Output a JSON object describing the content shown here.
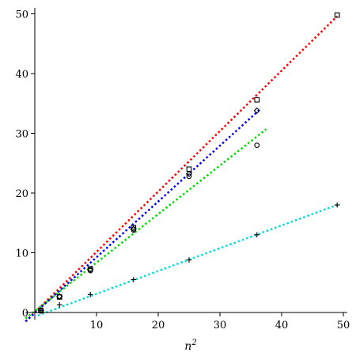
{
  "chart_data": {
    "type": "scatter",
    "xlabel": "n",
    "xlabel_superscript": "2",
    "ylabel": "",
    "xlim": [
      -1.5,
      51
    ],
    "ylim": [
      -1.2,
      51
    ],
    "xticks": [
      10,
      20,
      30,
      40,
      50
    ],
    "yticks": [
      0,
      10,
      20,
      30,
      40,
      50
    ],
    "grid": false,
    "series": [
      {
        "marker": "square",
        "line_color": "#ff0000",
        "fit": [
          [
            -1.5,
            -1.5
          ],
          [
            49,
            49.6
          ]
        ],
        "points": [
          [
            1,
            0.3
          ],
          [
            4,
            2.6
          ],
          [
            9,
            7.3
          ],
          [
            16,
            14.2
          ],
          [
            25,
            24.0
          ],
          [
            36,
            35.6
          ],
          [
            49,
            49.8
          ]
        ]
      },
      {
        "marker": "diamond",
        "line_color": "#0000ff",
        "fit": [
          [
            -1.5,
            -1.5
          ],
          [
            36.5,
            34.0
          ]
        ],
        "points": [
          [
            1,
            0.3
          ],
          [
            4,
            2.7
          ],
          [
            9,
            7.2
          ],
          [
            16,
            14.0
          ],
          [
            25,
            23.2
          ],
          [
            36,
            33.8
          ]
        ]
      },
      {
        "marker": "circle",
        "line_color": "#00dd00",
        "fit": [
          [
            -1.5,
            -1.0
          ],
          [
            37.5,
            30.7
          ]
        ],
        "points": [
          [
            1,
            0.4
          ],
          [
            4,
            2.6
          ],
          [
            9,
            7.0
          ],
          [
            16,
            13.8
          ],
          [
            25,
            22.8
          ],
          [
            36,
            28.0
          ]
        ]
      },
      {
        "marker": "plus",
        "line_color": "#00dddd",
        "fit": [
          [
            0.5,
            -0.5
          ],
          [
            49.5,
            18.2
          ]
        ],
        "points": [
          [
            1,
            0.3
          ],
          [
            4,
            1.3
          ],
          [
            9,
            3.0
          ],
          [
            16,
            5.5
          ],
          [
            25,
            8.8
          ],
          [
            36,
            13.0
          ],
          [
            49,
            18.0
          ]
        ]
      }
    ]
  }
}
